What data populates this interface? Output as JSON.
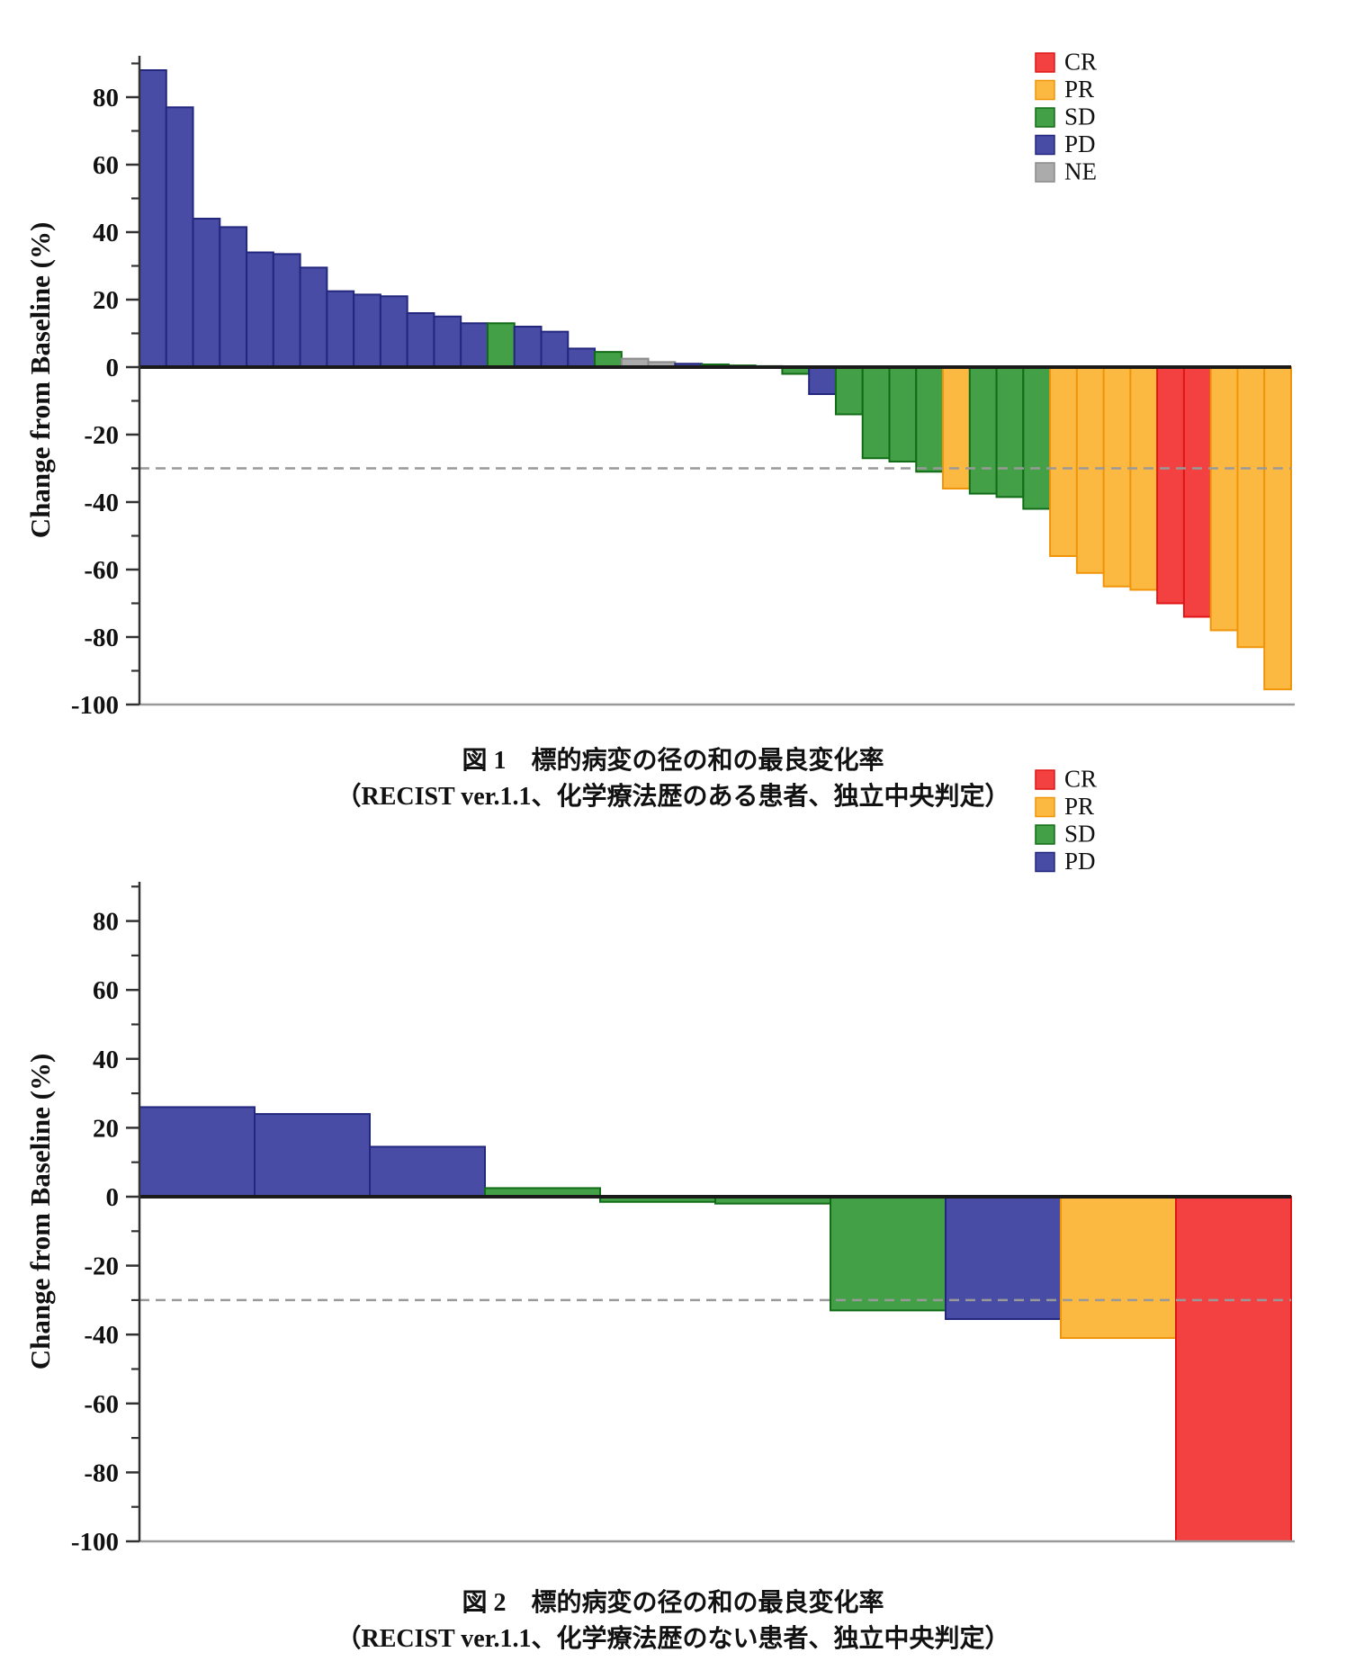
{
  "page": {
    "background": "#ffffff"
  },
  "colors": {
    "CR": {
      "fill": "#f34141",
      "stroke": "#e01616"
    },
    "PR": {
      "fill": "#fcb942",
      "stroke": "#f0940a"
    },
    "SD": {
      "fill": "#43a047",
      "stroke": "#116b17"
    },
    "PD": {
      "fill": "#484ca4",
      "stroke": "#23277d"
    },
    "NE": {
      "fill": "#ababab",
      "stroke": "#8a8a8a"
    }
  },
  "figure1": {
    "caption_line1": "図 1　標的病変の径の和の最良変化率",
    "caption_line2": "（RECIST ver.1.1、化学療法歴のある患者、独立中央判定）"
  },
  "figure2": {
    "caption_line1": "図 2　標的病変の径の和の最良変化率",
    "caption_line2": "（RECIST ver.1.1、化学療法歴のない患者、独立中央判定）"
  },
  "chart_data": [
    {
      "type": "bar",
      "title": "図 1　標的病変の径の和の最良変化率（RECIST ver.1.1、化学療法歴のある患者、独立中央判定）",
      "xlabel": "",
      "ylabel": "Change from Baseline (%)",
      "ylim": [
        -100,
        90
      ],
      "yticks": [
        80,
        60,
        40,
        20,
        0,
        -20,
        -40,
        -60,
        -80,
        -100
      ],
      "reference_line": -30,
      "grid": false,
      "legend_position": "top-right",
      "legend": [
        "CR",
        "PR",
        "SD",
        "PD",
        "NE"
      ],
      "bars": [
        {
          "response": "PD",
          "value": 88
        },
        {
          "response": "PD",
          "value": 77
        },
        {
          "response": "PD",
          "value": 44
        },
        {
          "response": "PD",
          "value": 41.5
        },
        {
          "response": "PD",
          "value": 34
        },
        {
          "response": "PD",
          "value": 33.5
        },
        {
          "response": "PD",
          "value": 29.5
        },
        {
          "response": "PD",
          "value": 22.5
        },
        {
          "response": "PD",
          "value": 21.5
        },
        {
          "response": "PD",
          "value": 21
        },
        {
          "response": "PD",
          "value": 16
        },
        {
          "response": "PD",
          "value": 15
        },
        {
          "response": "PD",
          "value": 13
        },
        {
          "response": "SD",
          "value": 13
        },
        {
          "response": "PD",
          "value": 12
        },
        {
          "response": "PD",
          "value": 10.5
        },
        {
          "response": "PD",
          "value": 5.5
        },
        {
          "response": "SD",
          "value": 4.5
        },
        {
          "response": "NE",
          "value": 2.5
        },
        {
          "response": "NE",
          "value": 1.5
        },
        {
          "response": "PD",
          "value": 1
        },
        {
          "response": "SD",
          "value": 0.8
        },
        {
          "response": "SD",
          "value": 0.5
        },
        {
          "response": "SD",
          "value": 0.3
        },
        {
          "response": "SD",
          "value": -2
        },
        {
          "response": "PD",
          "value": -8
        },
        {
          "response": "SD",
          "value": -14
        },
        {
          "response": "SD",
          "value": -27
        },
        {
          "response": "SD",
          "value": -28
        },
        {
          "response": "SD",
          "value": -31
        },
        {
          "response": "PR",
          "value": -36
        },
        {
          "response": "SD",
          "value": -37.5
        },
        {
          "response": "SD",
          "value": -38.5
        },
        {
          "response": "SD",
          "value": -42
        },
        {
          "response": "PR",
          "value": -56
        },
        {
          "response": "PR",
          "value": -61
        },
        {
          "response": "PR",
          "value": -65
        },
        {
          "response": "PR",
          "value": -66
        },
        {
          "response": "CR",
          "value": -70
        },
        {
          "response": "CR",
          "value": -74
        },
        {
          "response": "PR",
          "value": -78
        },
        {
          "response": "PR",
          "value": -83
        },
        {
          "response": "PR",
          "value": -95.5
        }
      ]
    },
    {
      "type": "bar",
      "title": "図 2　標的病変の径の和の最良変化率（RECIST ver.1.1、化学療法歴のない患者、独立中央判定）",
      "xlabel": "",
      "ylabel": "Change from Baseline (%)",
      "ylim": [
        -100,
        90
      ],
      "yticks": [
        80,
        60,
        40,
        20,
        0,
        -20,
        -40,
        -60,
        -80,
        -100
      ],
      "reference_line": -30,
      "grid": false,
      "legend_position": "top-right",
      "legend": [
        "CR",
        "PR",
        "SD",
        "PD"
      ],
      "bars": [
        {
          "response": "PD",
          "value": 26
        },
        {
          "response": "PD",
          "value": 24
        },
        {
          "response": "PD",
          "value": 14.5
        },
        {
          "response": "SD",
          "value": 2.5
        },
        {
          "response": "SD",
          "value": -1.5
        },
        {
          "response": "SD",
          "value": -2
        },
        {
          "response": "SD",
          "value": -33
        },
        {
          "response": "PD",
          "value": -35.5
        },
        {
          "response": "PR",
          "value": -41
        },
        {
          "response": "CR",
          "value": -100
        }
      ]
    }
  ]
}
